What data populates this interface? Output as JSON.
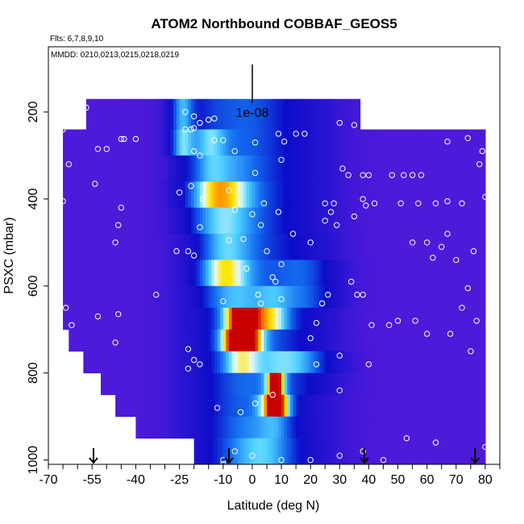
{
  "chart_data": {
    "type": "heatmap",
    "title": "ATOM2 Northbound COBBAF_GEOS5",
    "subtitle_flights": "Flts: 6,7,8,9,10",
    "subtitle_dates": "MMDD: 0210,0213,0215,0218,0219",
    "xlabel": "Latitude (deg N)",
    "ylabel": "PSXC (mbar)",
    "xlim": [
      -70,
      85
    ],
    "ylim": [
      1010,
      50
    ],
    "y_reversed": true,
    "x_ticks": [
      -70,
      -55,
      -40,
      -25,
      -10,
      0,
      10,
      20,
      30,
      40,
      50,
      60,
      70,
      80
    ],
    "x_tick_labels": [
      "-70",
      "-55",
      "-40",
      "-25",
      "-10",
      "0",
      "10",
      "20",
      "30",
      "40",
      "50",
      "60",
      "70",
      "80"
    ],
    "x_minor_ticks": [
      -65,
      -60,
      -50,
      -45,
      -35,
      -30,
      -20,
      -15,
      -5,
      5,
      15,
      25,
      35,
      45,
      55,
      65,
      75,
      85
    ],
    "y_ticks": [
      200,
      400,
      600,
      800,
      1000
    ],
    "y_tick_labels": [
      "200",
      "400",
      "600",
      "800",
      "1000"
    ],
    "scale_bar_label": "1e-08",
    "arrows_latitude": [
      -54.5,
      -8,
      38.5,
      76.5
    ],
    "colors": {
      "low": "#6a1ee0",
      "mid_blue": "#1010cc",
      "cyan": "#44ccff",
      "yellow": "#ffdd00",
      "red": "#cc0000",
      "points": "#ffffff"
    },
    "bands": [
      {
        "p_top": 170,
        "p_bot": 240,
        "x_min": -57,
        "x_max": 37
      },
      {
        "p_top": 240,
        "p_bot": 300,
        "x_min": -65,
        "x_max": 80
      },
      {
        "p_top": 300,
        "p_bot": 360,
        "x_min": -65,
        "x_max": 80
      },
      {
        "p_top": 360,
        "p_bot": 420,
        "x_min": -65,
        "x_max": 80
      },
      {
        "p_top": 420,
        "p_bot": 480,
        "x_min": -65,
        "x_max": 80
      },
      {
        "p_top": 480,
        "p_bot": 540,
        "x_min": -65,
        "x_max": 80
      },
      {
        "p_top": 540,
        "p_bot": 600,
        "x_min": -65,
        "x_max": 80
      },
      {
        "p_top": 600,
        "p_bot": 650,
        "x_min": -65,
        "x_max": 80
      },
      {
        "p_top": 650,
        "p_bot": 700,
        "x_min": -65,
        "x_max": 80
      },
      {
        "p_top": 700,
        "p_bot": 750,
        "x_min": -63,
        "x_max": 80
      },
      {
        "p_top": 750,
        "p_bot": 800,
        "x_min": -58,
        "x_max": 80
      },
      {
        "p_top": 800,
        "p_bot": 850,
        "x_min": -52,
        "x_max": 80
      },
      {
        "p_top": 850,
        "p_bot": 900,
        "x_min": -47,
        "x_max": 80
      },
      {
        "p_top": 900,
        "p_bot": 950,
        "x_min": -40,
        "x_max": 80
      },
      {
        "p_top": 950,
        "p_bot": 1010,
        "x_min": -20,
        "x_max": 80
      }
    ],
    "hotspots": [
      {
        "lat": -24,
        "p": 240,
        "slat": 4,
        "sp": 60,
        "amp": 0.55
      },
      {
        "lat": -15,
        "p": 280,
        "slat": 6,
        "sp": 60,
        "amp": 0.35
      },
      {
        "lat": -12,
        "p": 400,
        "slat": 10,
        "sp": 60,
        "amp": 0.55
      },
      {
        "lat": -10,
        "p": 560,
        "slat": 8,
        "sp": 60,
        "amp": 0.45
      },
      {
        "lat": -3,
        "p": 690,
        "slat": 6,
        "sp": 40,
        "amp": 1.0
      },
      {
        "lat": -4,
        "p": 740,
        "slat": 6,
        "sp": 35,
        "amp": 0.8
      },
      {
        "lat": 7,
        "p": 660,
        "slat": 6,
        "sp": 35,
        "amp": 0.45
      },
      {
        "lat": 8,
        "p": 840,
        "slat": 3,
        "sp": 30,
        "amp": 1.0
      },
      {
        "lat": 8,
        "p": 885,
        "slat": 5,
        "sp": 30,
        "amp": 0.8
      },
      {
        "lat": 14,
        "p": 780,
        "slat": 12,
        "sp": 40,
        "amp": 0.35
      },
      {
        "lat": 5,
        "p": 960,
        "slat": 10,
        "sp": 30,
        "amp": 0.35
      },
      {
        "lat": 18,
        "p": 600,
        "slat": 10,
        "sp": 60,
        "amp": 0.25
      }
    ],
    "points": [
      [
        -57,
        190
      ],
      [
        -64,
        215
      ],
      [
        -65,
        240
      ],
      [
        -59,
        230
      ],
      [
        -66,
        265
      ],
      [
        -63,
        320
      ],
      [
        -65,
        405
      ],
      [
        -53,
        285
      ],
      [
        -50,
        285
      ],
      [
        -45,
        262
      ],
      [
        -44,
        262
      ],
      [
        -40,
        262
      ],
      [
        -54,
        365
      ],
      [
        -45,
        420
      ],
      [
        -46,
        460
      ],
      [
        -47,
        500
      ],
      [
        -64,
        650
      ],
      [
        -62,
        690
      ],
      [
        -53,
        670
      ],
      [
        -46,
        665
      ],
      [
        -47,
        730
      ],
      [
        -23,
        240
      ],
      [
        -21,
        240
      ],
      [
        -20,
        237
      ],
      [
        -18,
        225
      ],
      [
        -15,
        218
      ],
      [
        -13,
        215
      ],
      [
        -23,
        200
      ],
      [
        -20,
        210
      ],
      [
        -13,
        265
      ],
      [
        -10,
        265
      ],
      [
        -6,
        290
      ],
      [
        -20,
        290
      ],
      [
        -18,
        300
      ],
      [
        -25,
        385
      ],
      [
        -21,
        370
      ],
      [
        -17,
        400
      ],
      [
        -18,
        465
      ],
      [
        -8,
        495
      ],
      [
        -3,
        492
      ],
      [
        3,
        460
      ],
      [
        0,
        435
      ],
      [
        1,
        270
      ],
      [
        9,
        250
      ],
      [
        11,
        268
      ],
      [
        15,
        250
      ],
      [
        18,
        250
      ],
      [
        10,
        310
      ],
      [
        1,
        340
      ],
      [
        4,
        410
      ],
      [
        9,
        430
      ],
      [
        -6,
        425
      ],
      [
        -8,
        380
      ],
      [
        -22,
        520
      ],
      [
        -26,
        520
      ],
      [
        -20,
        530
      ],
      [
        -22,
        745
      ],
      [
        -18,
        780
      ],
      [
        5,
        520
      ],
      [
        7,
        580
      ],
      [
        8,
        590
      ],
      [
        10,
        550
      ],
      [
        14,
        480
      ],
      [
        20,
        500
      ],
      [
        25,
        410
      ],
      [
        25,
        450
      ],
      [
        28,
        410
      ],
      [
        31,
        330
      ],
      [
        33,
        345
      ],
      [
        35,
        230
      ],
      [
        30,
        225
      ],
      [
        35,
        440
      ],
      [
        27,
        430
      ],
      [
        29,
        460
      ],
      [
        34,
        590
      ],
      [
        38,
        345
      ],
      [
        40,
        345
      ],
      [
        48,
        345
      ],
      [
        52,
        345
      ],
      [
        55,
        345
      ],
      [
        58,
        345
      ],
      [
        38,
        400
      ],
      [
        39,
        415
      ],
      [
        42,
        410
      ],
      [
        51,
        410
      ],
      [
        57,
        410
      ],
      [
        63,
        410
      ],
      [
        67,
        405
      ],
      [
        72,
        410
      ],
      [
        55,
        500
      ],
      [
        60,
        500
      ],
      [
        62,
        535
      ],
      [
        65,
        510
      ],
      [
        67,
        480
      ],
      [
        70,
        540
      ],
      [
        76,
        520
      ],
      [
        78,
        320
      ],
      [
        80,
        395
      ],
      [
        74,
        605
      ],
      [
        72,
        650
      ],
      [
        77,
        680
      ],
      [
        75,
        750
      ],
      [
        68,
        710
      ],
      [
        60,
        710
      ],
      [
        56,
        680
      ],
      [
        50,
        680
      ],
      [
        47,
        690
      ],
      [
        41,
        690
      ],
      [
        38,
        620
      ],
      [
        36,
        620
      ],
      [
        26,
        620
      ],
      [
        24,
        640
      ],
      [
        22,
        685
      ],
      [
        10,
        630
      ],
      [
        2,
        620
      ],
      [
        3,
        640
      ],
      [
        -10,
        635
      ],
      [
        -33,
        620
      ],
      [
        -2,
        560
      ],
      [
        20,
        720
      ],
      [
        22,
        780
      ],
      [
        30,
        760
      ],
      [
        40,
        780
      ],
      [
        30,
        840
      ],
      [
        7,
        850
      ],
      [
        1,
        870
      ],
      [
        -4,
        890
      ],
      [
        -12,
        880
      ],
      [
        -22,
        790
      ],
      [
        -20,
        770
      ],
      [
        -6,
        980
      ],
      [
        0,
        990
      ],
      [
        -10,
        1000
      ],
      [
        10,
        1000
      ],
      [
        20,
        1000
      ],
      [
        30,
        990
      ],
      [
        38,
        980
      ],
      [
        45,
        1000
      ],
      [
        53,
        950
      ],
      [
        63,
        960
      ],
      [
        80,
        970
      ],
      [
        67,
        268
      ],
      [
        79,
        290
      ],
      [
        74,
        260
      ],
      [
        -10,
        1010
      ]
    ]
  }
}
